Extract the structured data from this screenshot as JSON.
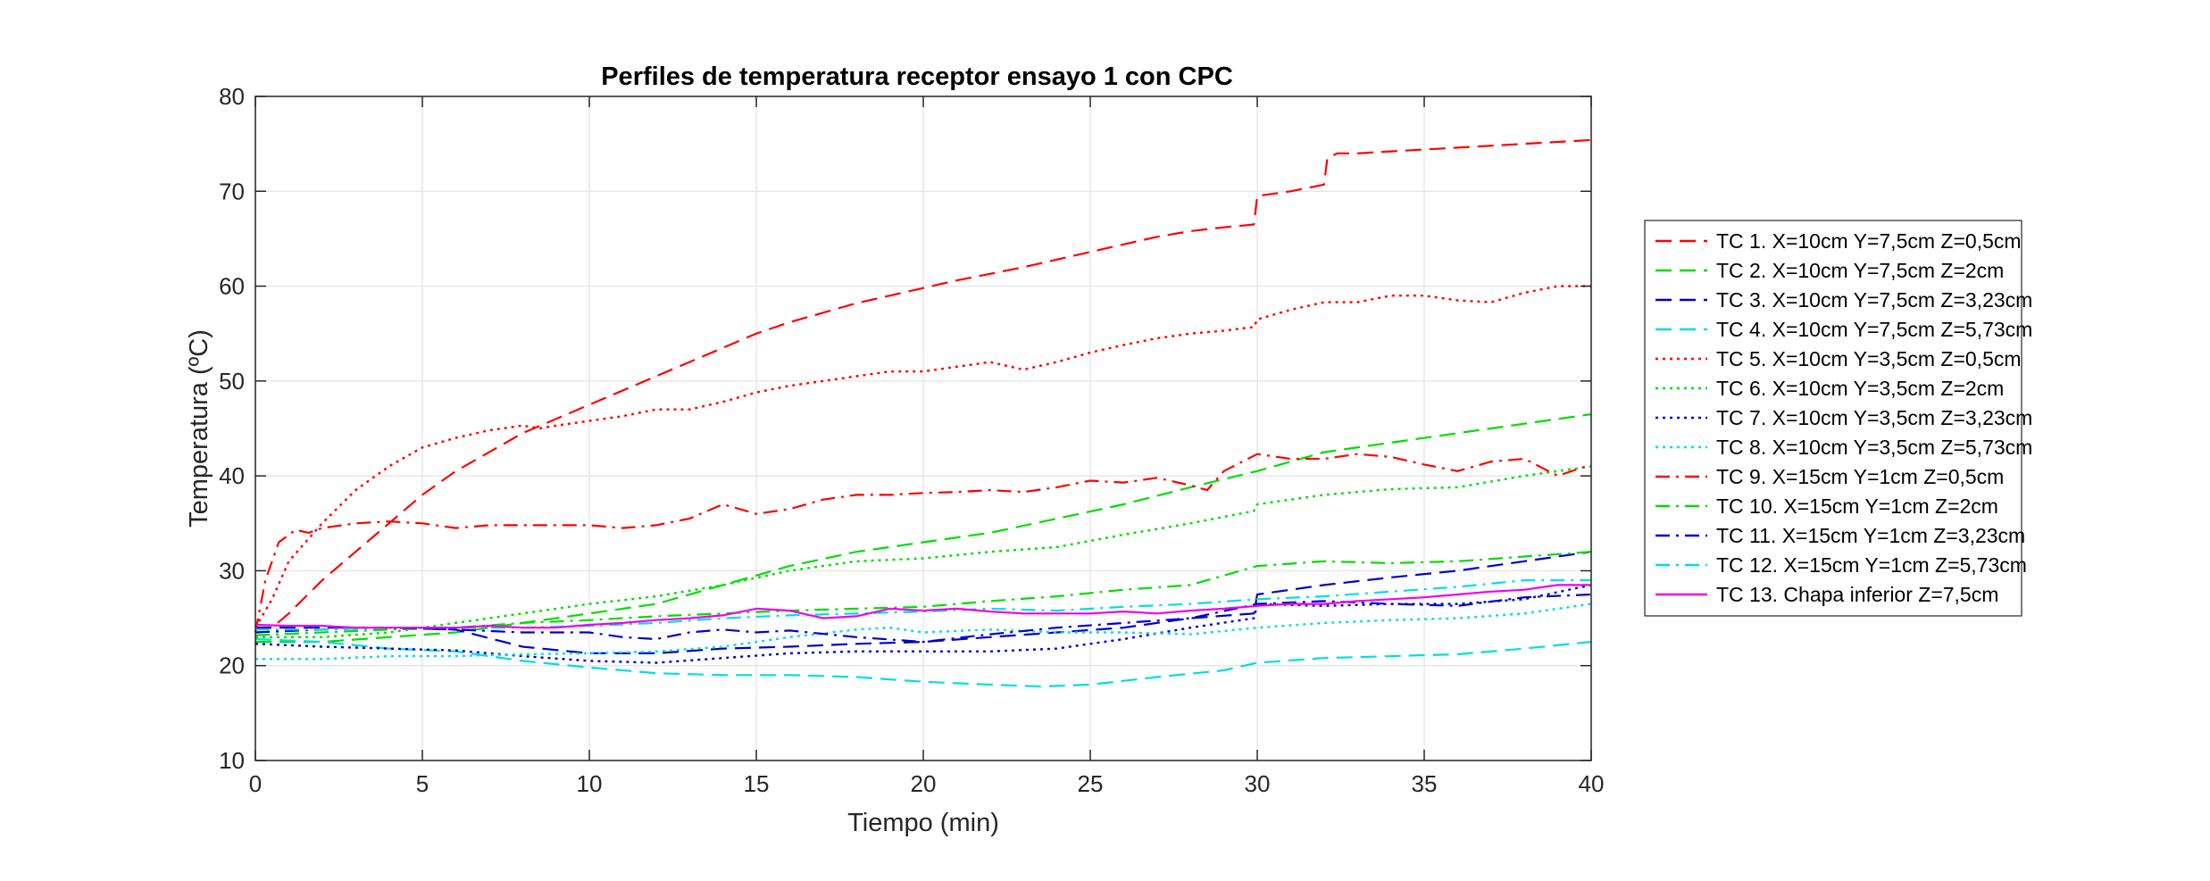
{
  "chart_data": {
    "type": "line",
    "title": "Perfiles de temperatura receptor ensayo 1 con CPC",
    "xlabel": "Tiempo (min)",
    "ylabel": "Temperatura (ºC)",
    "xlim": [
      0,
      40
    ],
    "ylim": [
      10,
      80
    ],
    "xticks": [
      0,
      5,
      10,
      15,
      20,
      25,
      30,
      35,
      40
    ],
    "yticks": [
      10,
      20,
      30,
      40,
      50,
      60,
      70,
      80
    ],
    "grid": true,
    "legend_position": "right",
    "series": [
      {
        "name": "TC 1. X=10cm Y=7,5cm Z=0,5cm",
        "color": "#ff0000",
        "dash": "dashed",
        "x": [
          0,
          0.5,
          1,
          2,
          3,
          4,
          5,
          6,
          7,
          8,
          9,
          10,
          11,
          12,
          13,
          14,
          15,
          16,
          17,
          18,
          19,
          20,
          21,
          22,
          23,
          24,
          25,
          26,
          27,
          28,
          29,
          29.9,
          30,
          31,
          32,
          32.1,
          32.4,
          33,
          34,
          35,
          36,
          37,
          38,
          39,
          40
        ],
        "y": [
          24,
          24,
          25.5,
          29,
          32,
          35,
          38,
          40.5,
          42.5,
          44.5,
          46,
          47.5,
          49,
          50.5,
          52,
          53.5,
          55,
          56.2,
          57.2,
          58.2,
          59,
          59.8,
          60.6,
          61.3,
          62,
          62.8,
          63.6,
          64.4,
          65.2,
          65.8,
          66.2,
          66.5,
          69.5,
          70,
          70.7,
          73.5,
          74,
          74,
          74.2,
          74.4,
          74.6,
          74.8,
          75,
          75.2,
          75.4
        ]
      },
      {
        "name": "TC 2. X=10cm Y=7,5cm Z=2cm",
        "color": "#00dd00",
        "dash": "dashed",
        "x": [
          0,
          2,
          4,
          6,
          8,
          10,
          12,
          14,
          16,
          18,
          20,
          22,
          24,
          26,
          28,
          30,
          32,
          34,
          36,
          38,
          40
        ],
        "y": [
          22.5,
          22.5,
          23,
          23.5,
          24.5,
          25.5,
          26.5,
          28.5,
          30.5,
          32,
          33,
          34,
          35.5,
          37,
          38.8,
          40.5,
          42.5,
          43.5,
          44.5,
          45.5,
          46.5
        ]
      },
      {
        "name": "TC 3. X=10cm Y=7,5cm Z=3,23cm",
        "color": "#0000cc",
        "dash": "dashed",
        "x": [
          0,
          2,
          4,
          6,
          8,
          10,
          12,
          14,
          16,
          18,
          20,
          22,
          24,
          26,
          28,
          29.9,
          30,
          32,
          34,
          36,
          38,
          40
        ],
        "y": [
          24,
          24,
          24,
          23.8,
          22,
          21.3,
          21.3,
          21.8,
          22,
          22.3,
          22.5,
          23,
          23.5,
          24,
          25,
          25.5,
          27.5,
          28.5,
          29.3,
          30,
          31,
          32
        ]
      },
      {
        "name": "TC 4. X=10cm Y=7,5cm Z=5,73cm",
        "color": "#00dddd",
        "dash": "dashed",
        "x": [
          0,
          2,
          4,
          6,
          8,
          10,
          12,
          14,
          16,
          18,
          20,
          22,
          23.5,
          25,
          27,
          29,
          30,
          32,
          34,
          36,
          38,
          40
        ],
        "y": [
          22.8,
          22.5,
          21.8,
          21.5,
          20.5,
          19.8,
          19.2,
          19,
          19,
          18.8,
          18.3,
          18,
          17.8,
          18,
          18.8,
          19.5,
          20.3,
          20.8,
          21,
          21.2,
          21.8,
          22.5
        ]
      },
      {
        "name": "TC 5. X=10cm Y=3,5cm Z=0,5cm",
        "color": "#ff0000",
        "dash": "dotted",
        "x": [
          0,
          0.5,
          1,
          2,
          3,
          4,
          5,
          6,
          7,
          8,
          8.5,
          9,
          10,
          11,
          12,
          13,
          14,
          15,
          16,
          17,
          18,
          19,
          20,
          21,
          22,
          23,
          24,
          25,
          26,
          27,
          28,
          29,
          29.9,
          30,
          31,
          32,
          33,
          34,
          35,
          36,
          37,
          38,
          39,
          40
        ],
        "y": [
          24,
          27,
          31,
          35,
          38.5,
          41,
          43,
          44,
          44.8,
          45.3,
          45,
          45.3,
          45.8,
          46.3,
          47,
          47,
          47.8,
          48.8,
          49.5,
          50,
          50.5,
          51,
          51,
          51.5,
          52,
          51.2,
          52,
          53,
          53.8,
          54.5,
          55,
          55.3,
          55.7,
          56.5,
          57.5,
          58.3,
          58.3,
          59,
          59,
          58.5,
          58.3,
          59.3,
          60,
          60
        ]
      },
      {
        "name": "TC 6. X=10cm Y=3,5cm Z=2cm",
        "color": "#00dd00",
        "dash": "dotted",
        "x": [
          0,
          2,
          4,
          6,
          8,
          10,
          12,
          14,
          16,
          18,
          20,
          22,
          24,
          26,
          28,
          29.9,
          30,
          32,
          34,
          36,
          38,
          40
        ],
        "y": [
          23,
          23,
          23.5,
          24.5,
          25.5,
          26.5,
          27.3,
          28.5,
          30,
          31,
          31.3,
          32,
          32.5,
          33.8,
          35,
          36.3,
          37,
          38,
          38.6,
          38.8,
          40,
          41
        ]
      },
      {
        "name": "TC 7. X=10cm Y=3,5cm Z=3,23cm",
        "color": "#0000cc",
        "dash": "dotted",
        "x": [
          0,
          2,
          4,
          6,
          8,
          10,
          12,
          14,
          16,
          18,
          20,
          22,
          24,
          26,
          28,
          29.9,
          30,
          32,
          34,
          36,
          38,
          40
        ],
        "y": [
          22.3,
          22,
          21.8,
          21.6,
          21,
          20.5,
          20.3,
          20.8,
          21.3,
          21.5,
          21.5,
          21.5,
          21.8,
          22.8,
          24,
          25,
          26.5,
          26.3,
          26.5,
          26.5,
          27,
          28.5
        ]
      },
      {
        "name": "TC 8. X=10cm Y=3,5cm Z=5,73cm",
        "color": "#00dddd",
        "dash": "dotted",
        "x": [
          0,
          2,
          4,
          6,
          8,
          10,
          12,
          14,
          16,
          18,
          19,
          20,
          22,
          24,
          26,
          28,
          30,
          32,
          34,
          36,
          38,
          40
        ],
        "y": [
          20.7,
          20.7,
          21,
          21,
          21.2,
          21.3,
          21.5,
          22,
          23,
          23.8,
          24,
          23.5,
          23.8,
          23.5,
          23.5,
          23.3,
          24,
          24.5,
          24.8,
          25,
          25.5,
          26.5
        ]
      },
      {
        "name": "TC 9. X=15cm Y=1cm Z=0,5cm",
        "color": "#ff0000",
        "dash": "dashdot",
        "x": [
          0,
          0.3,
          0.7,
          1.2,
          1.6,
          2,
          3,
          4,
          5,
          6,
          7,
          8,
          9,
          10,
          11,
          12,
          13,
          14,
          15,
          16,
          17,
          18,
          19,
          20,
          21,
          22,
          23,
          24,
          25,
          26,
          27,
          28,
          28.5,
          29,
          30,
          31,
          32,
          33,
          34,
          35,
          36,
          37,
          38,
          39,
          40
        ],
        "y": [
          23.5,
          29,
          33,
          34.3,
          34,
          34.5,
          35,
          35.2,
          35,
          34.5,
          34.8,
          34.8,
          34.8,
          34.8,
          34.5,
          34.8,
          35.5,
          37,
          36,
          36.5,
          37.5,
          38,
          38,
          38.2,
          38.3,
          38.5,
          38.3,
          38.8,
          39.5,
          39.3,
          39.8,
          39,
          38.5,
          40.5,
          42.3,
          41.8,
          41.8,
          42.3,
          42,
          41.2,
          40.5,
          41.5,
          41.8,
          40,
          41.2
        ]
      },
      {
        "name": "TC 10. X=15cm Y=1cm Z=2cm",
        "color": "#00dd00",
        "dash": "dashdot",
        "x": [
          0,
          2,
          4,
          6,
          8,
          10,
          12,
          14,
          16,
          18,
          20,
          22,
          24,
          26,
          28,
          30,
          32,
          34,
          36,
          38,
          40
        ],
        "y": [
          23.2,
          23.5,
          23.8,
          24,
          24.5,
          24.8,
          25.2,
          25.5,
          25.8,
          26,
          26.2,
          26.8,
          27.3,
          28,
          28.5,
          30.5,
          31,
          30.8,
          31,
          31.5,
          32
        ]
      },
      {
        "name": "TC 11. X=15cm Y=1cm Z=3,23cm",
        "color": "#0000cc",
        "dash": "dashdot",
        "x": [
          0,
          2,
          4,
          6,
          8,
          10,
          11,
          12,
          13,
          14,
          15,
          16,
          18,
          20,
          22,
          24,
          26,
          28,
          30,
          32,
          34,
          36,
          38,
          40
        ],
        "y": [
          23.5,
          23.8,
          24,
          23.8,
          23.5,
          23.5,
          23,
          22.8,
          23.5,
          23.8,
          23.5,
          23.7,
          23,
          22.5,
          23.3,
          24,
          24.5,
          25,
          26.5,
          26.8,
          26.5,
          26.3,
          27.2,
          27.5
        ]
      },
      {
        "name": "TC 12. X=15cm Y=1cm Z=5,73cm",
        "color": "#00dddd",
        "dash": "dashdot",
        "x": [
          0,
          2,
          4,
          6,
          8,
          10,
          12,
          14,
          16,
          18,
          20,
          22,
          24,
          26,
          28,
          30,
          32,
          34,
          36,
          38,
          40
        ],
        "y": [
          23.8,
          23.8,
          24,
          24,
          24,
          24.2,
          24.5,
          25,
          25.3,
          25.5,
          25.7,
          26,
          25.8,
          26.2,
          26.5,
          27,
          27.3,
          27.8,
          28.3,
          29,
          29
        ]
      },
      {
        "name": "TC 13. Chapa inferior Z=7,5cm",
        "color": "#ee00ee",
        "dash": "solid",
        "x": [
          0,
          1,
          2,
          3,
          4,
          5,
          6,
          7,
          8,
          9,
          10,
          11,
          12,
          13,
          14,
          15,
          16,
          17,
          18,
          19,
          20,
          21,
          22,
          23,
          24,
          25,
          26,
          27,
          28,
          29,
          30,
          31,
          32,
          33,
          34,
          35,
          36,
          37,
          38,
          39,
          40
        ],
        "y": [
          24.3,
          24.2,
          24.2,
          24,
          24,
          24,
          24,
          24.2,
          24,
          24,
          24.3,
          24.5,
          24.8,
          25,
          25.3,
          26,
          25.8,
          25,
          25.2,
          26,
          25.8,
          26,
          25.7,
          25.5,
          25.5,
          25.5,
          25.7,
          25.5,
          25.8,
          26,
          26.3,
          26.5,
          26.5,
          26.8,
          27,
          27.2,
          27.5,
          27.8,
          28,
          28.5,
          28.5
        ]
      }
    ]
  }
}
